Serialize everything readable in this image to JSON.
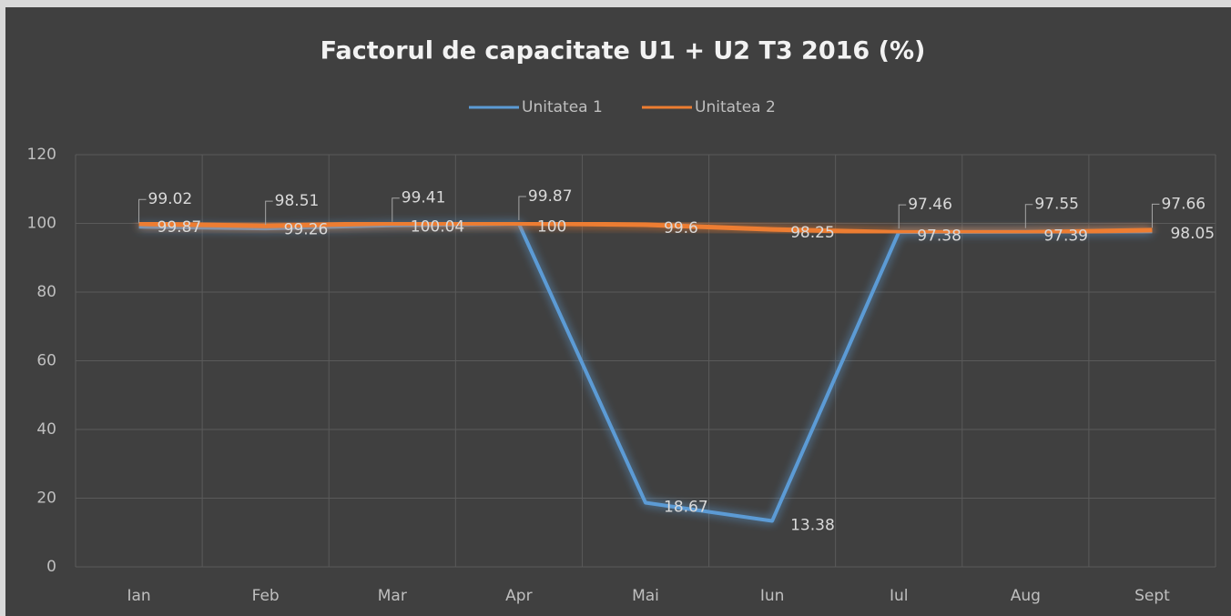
{
  "chart_data": {
    "type": "line",
    "title": "Factorul de capacitate U1 + U2 T3 2016 (%)",
    "categories": [
      "Ian",
      "Feb",
      "Mar",
      "Apr",
      "Mai",
      "Iun",
      "Iul",
      "Aug",
      "Sept"
    ],
    "series": [
      {
        "name": "Unitatea 1",
        "color": "#5b9bd5",
        "values": [
          99.02,
          98.51,
          99.41,
          99.87,
          18.67,
          13.38,
          97.46,
          97.55,
          97.66
        ]
      },
      {
        "name": "Unitatea 2",
        "color": "#ed7d31",
        "values": [
          99.87,
          99.26,
          100.04,
          100,
          99.6,
          98.25,
          97.38,
          97.39,
          98.05
        ]
      }
    ],
    "ylim": [
      0,
      120
    ],
    "yticks": [
      0,
      20,
      40,
      60,
      80,
      100,
      120
    ],
    "grid": true,
    "legend": "top"
  }
}
